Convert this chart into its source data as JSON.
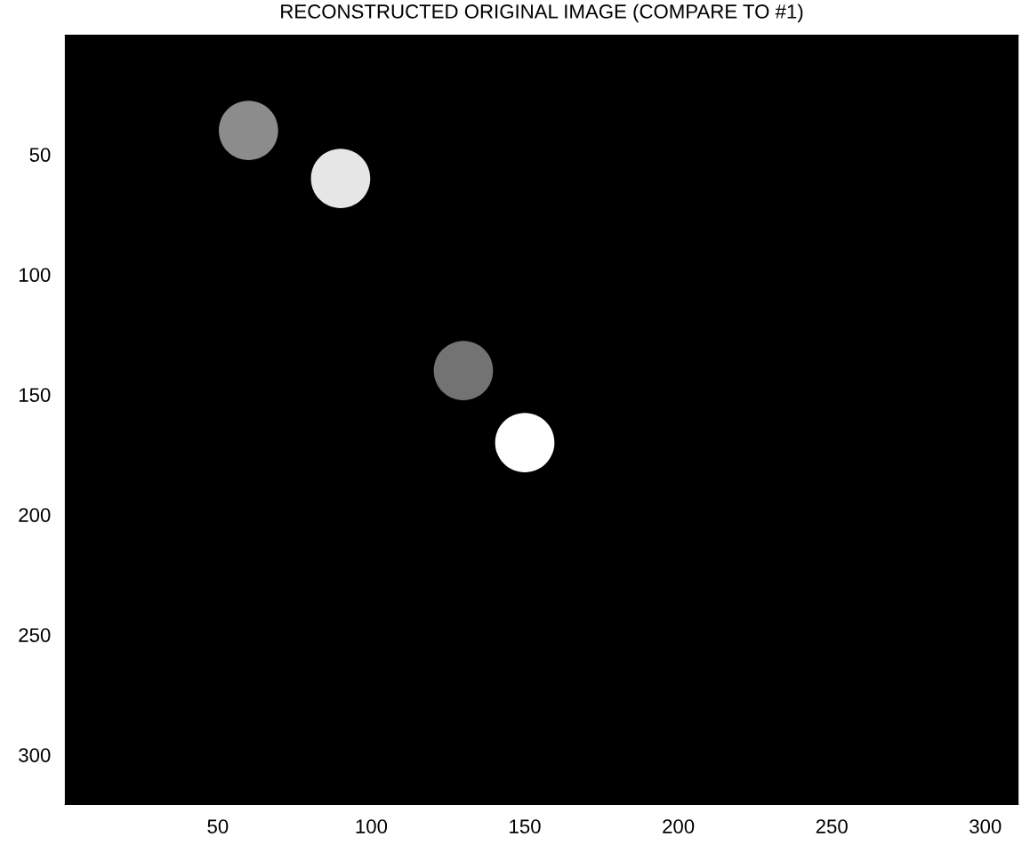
{
  "chart_data": {
    "type": "scatter",
    "title": "RECONSTRUCTED ORIGINAL IMAGE (COMPARE TO #1)",
    "x": [
      60,
      90,
      130,
      150
    ],
    "values": [
      40,
      60,
      140,
      170
    ],
    "colors": [
      "#8c8c8c",
      "#e6e6e6",
      "#737373",
      "#ffffff"
    ],
    "marker": "circle",
    "xlim": [
      0.5,
      310.5
    ],
    "ylim": [
      320.5,
      0.5
    ],
    "xticks": [
      50,
      100,
      150,
      200,
      250,
      300
    ],
    "yticks": [
      50,
      100,
      150,
      200,
      250,
      300
    ]
  }
}
